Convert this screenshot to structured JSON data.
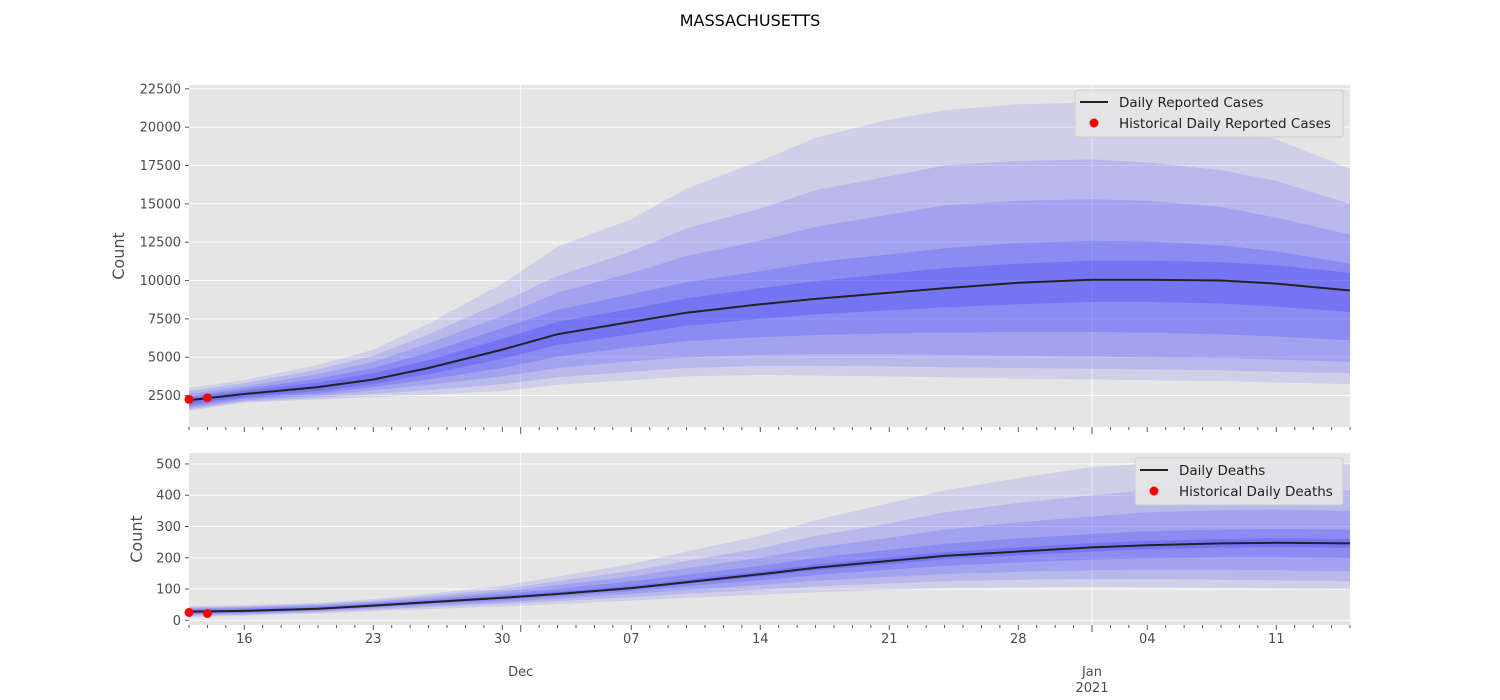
{
  "title": "MASSACHUSETTS",
  "x_axis": {
    "tick_labels": [
      "16",
      "23",
      "30",
      "07",
      "14",
      "21",
      "28",
      "04",
      "11"
    ],
    "month_labels": [
      "Dec",
      "Jan"
    ],
    "year_label": "2021"
  },
  "colors": {
    "plot_background": "#e5e5e5",
    "grid": "#ffffff",
    "band": "#3333ff",
    "median_line": "#222222",
    "historical_points": "#ff0000"
  },
  "chart_data": [
    {
      "type": "area",
      "ylabel": "Count",
      "xlabel": "",
      "ylim": [
        450,
        22750
      ],
      "yticks": [
        2500,
        5000,
        7500,
        10000,
        12500,
        15000,
        17500,
        20000,
        22500
      ],
      "x_dates": [
        "2020-11-13",
        "2020-11-16",
        "2020-11-20",
        "2020-11-23",
        "2020-11-26",
        "2020-11-30",
        "2020-12-03",
        "2020-12-07",
        "2020-12-10",
        "2020-12-14",
        "2020-12-17",
        "2020-12-21",
        "2020-12-24",
        "2020-12-28",
        "2021-01-01",
        "2021-01-04",
        "2021-01-08",
        "2021-01-11",
        "2021-01-15"
      ],
      "x_range": [
        "2020-11-13",
        "2021-01-15"
      ],
      "series": [
        {
          "name": "Daily Reported Cases",
          "style": "line",
          "values": [
            2200,
            2600,
            3050,
            3550,
            4300,
            5500,
            6500,
            7300,
            7900,
            8450,
            8800,
            9200,
            9500,
            9850,
            10050,
            10050,
            10000,
            9800,
            9350
          ]
        }
      ],
      "historical": {
        "name": "Historical Daily Reported Cases",
        "dates": [
          "2020-11-13",
          "2020-11-14"
        ],
        "values": [
          2250,
          2350
        ]
      },
      "bands": [
        {
          "lower": [
            1500,
            2050,
            2250,
            2400,
            2550,
            2800,
            3200,
            3500,
            3750,
            3850,
            3800,
            3750,
            3700,
            3600,
            3550,
            3500,
            3450,
            3350,
            3250
          ],
          "upper": [
            3000,
            3500,
            4500,
            5500,
            7200,
            9800,
            12200,
            14000,
            16000,
            17800,
            19300,
            20500,
            21100,
            21500,
            21600,
            21200,
            20300,
            19200,
            17300
          ]
        },
        {
          "lower": [
            1600,
            2100,
            2350,
            2600,
            2850,
            3250,
            3700,
            4050,
            4300,
            4450,
            4450,
            4400,
            4350,
            4300,
            4250,
            4200,
            4150,
            4050,
            3950
          ],
          "upper": [
            2800,
            3300,
            4200,
            5100,
            6500,
            8600,
            10300,
            11900,
            13400,
            14700,
            15900,
            16800,
            17500,
            17800,
            17900,
            17700,
            17200,
            16500,
            15000
          ]
        },
        {
          "lower": [
            1700,
            2200,
            2500,
            2850,
            3200,
            3750,
            4300,
            4750,
            5000,
            5150,
            5200,
            5200,
            5150,
            5100,
            5050,
            5000,
            4950,
            4850,
            4700
          ],
          "upper": [
            2600,
            3100,
            3900,
            4700,
            5900,
            7700,
            9200,
            10500,
            11600,
            12600,
            13500,
            14300,
            14900,
            15200,
            15300,
            15200,
            14800,
            14100,
            13000
          ]
        },
        {
          "lower": [
            1800,
            2300,
            2650,
            3050,
            3550,
            4300,
            5050,
            5650,
            6050,
            6300,
            6450,
            6550,
            6600,
            6650,
            6650,
            6600,
            6500,
            6350,
            6100
          ],
          "upper": [
            2450,
            2950,
            3600,
            4300,
            5300,
            6900,
            8100,
            9100,
            9900,
            10600,
            11200,
            11700,
            12100,
            12450,
            12600,
            12550,
            12300,
            11900,
            11100
          ]
        },
        {
          "lower": [
            1950,
            2400,
            2800,
            3250,
            3900,
            4900,
            5800,
            6500,
            7050,
            7500,
            7800,
            8050,
            8250,
            8450,
            8600,
            8600,
            8500,
            8300,
            7950
          ],
          "upper": [
            2350,
            2800,
            3350,
            3950,
            4800,
            6200,
            7300,
            8150,
            8850,
            9500,
            9950,
            10450,
            10800,
            11100,
            11300,
            11300,
            11200,
            11000,
            10500
          ]
        }
      ]
    },
    {
      "type": "area",
      "ylabel": "Count",
      "xlabel": "",
      "ylim": [
        -15,
        535
      ],
      "yticks": [
        0,
        100,
        200,
        300,
        400,
        500
      ],
      "x_dates": [
        "2020-11-13",
        "2020-11-16",
        "2020-11-20",
        "2020-11-23",
        "2020-11-26",
        "2020-11-30",
        "2020-12-03",
        "2020-12-07",
        "2020-12-10",
        "2020-12-14",
        "2020-12-17",
        "2020-12-21",
        "2020-12-24",
        "2020-12-28",
        "2021-01-01",
        "2021-01-04",
        "2021-01-08",
        "2021-01-11",
        "2021-01-15"
      ],
      "x_range": [
        "2020-11-13",
        "2021-01-15"
      ],
      "series": [
        {
          "name": "Daily Deaths",
          "style": "line",
          "values": [
            28,
            30,
            37,
            47,
            58,
            72,
            84,
            103,
            122,
            147,
            168,
            190,
            206,
            220,
            233,
            240,
            246,
            248,
            246
          ]
        }
      ],
      "historical": {
        "name": "Historical Daily Deaths",
        "dates": [
          "2020-11-13",
          "2020-11-14"
        ],
        "values": [
          25,
          22
        ]
      },
      "bands": [
        {
          "lower": [
            10,
            15,
            22,
            29,
            36,
            44,
            52,
            63,
            72,
            82,
            90,
            98,
            103,
            106,
            107,
            106,
            104,
            102,
            100
          ],
          "upper": [
            45,
            48,
            56,
            68,
            85,
            110,
            140,
            180,
            220,
            270,
            320,
            375,
            415,
            455,
            490,
            500,
            500,
            500,
            500
          ]
        },
        {
          "lower": [
            14,
            18,
            26,
            34,
            42,
            52,
            61,
            74,
            85,
            98,
            108,
            118,
            125,
            130,
            132,
            132,
            130,
            128,
            125
          ],
          "upper": [
            42,
            45,
            52,
            63,
            78,
            100,
            125,
            158,
            190,
            230,
            270,
            310,
            345,
            375,
            400,
            415,
            420,
            420,
            415
          ]
        },
        {
          "lower": [
            17,
            21,
            29,
            38,
            47,
            58,
            69,
            84,
            97,
            113,
            126,
            139,
            148,
            155,
            160,
            162,
            162,
            160,
            157
          ],
          "upper": [
            39,
            42,
            49,
            59,
            72,
            92,
            112,
            140,
            167,
            200,
            232,
            264,
            290,
            313,
            332,
            345,
            352,
            354,
            350
          ]
        },
        {
          "lower": [
            20,
            24,
            32,
            42,
            52,
            64,
            76,
            93,
            109,
            128,
            145,
            162,
            174,
            185,
            194,
            198,
            201,
            201,
            199
          ],
          "upper": [
            36,
            39,
            45,
            55,
            66,
            84,
            101,
            124,
            146,
            174,
            200,
            225,
            245,
            262,
            276,
            285,
            290,
            292,
            290
          ]
        },
        {
          "lower": [
            24,
            27,
            34,
            44,
            55,
            68,
            81,
            99,
            117,
            140,
            160,
            180,
            195,
            208,
            220,
            227,
            232,
            234,
            232
          ],
          "upper": [
            32,
            34,
            41,
            51,
            62,
            77,
            91,
            110,
            130,
            156,
            178,
            202,
            218,
            233,
            247,
            254,
            260,
            262,
            260
          ]
        }
      ]
    }
  ],
  "legends": [
    {
      "line_label": "Daily Reported Cases",
      "point_label": "Historical Daily Reported Cases"
    },
    {
      "line_label": "Daily Deaths",
      "point_label": "Historical Daily Deaths"
    }
  ]
}
